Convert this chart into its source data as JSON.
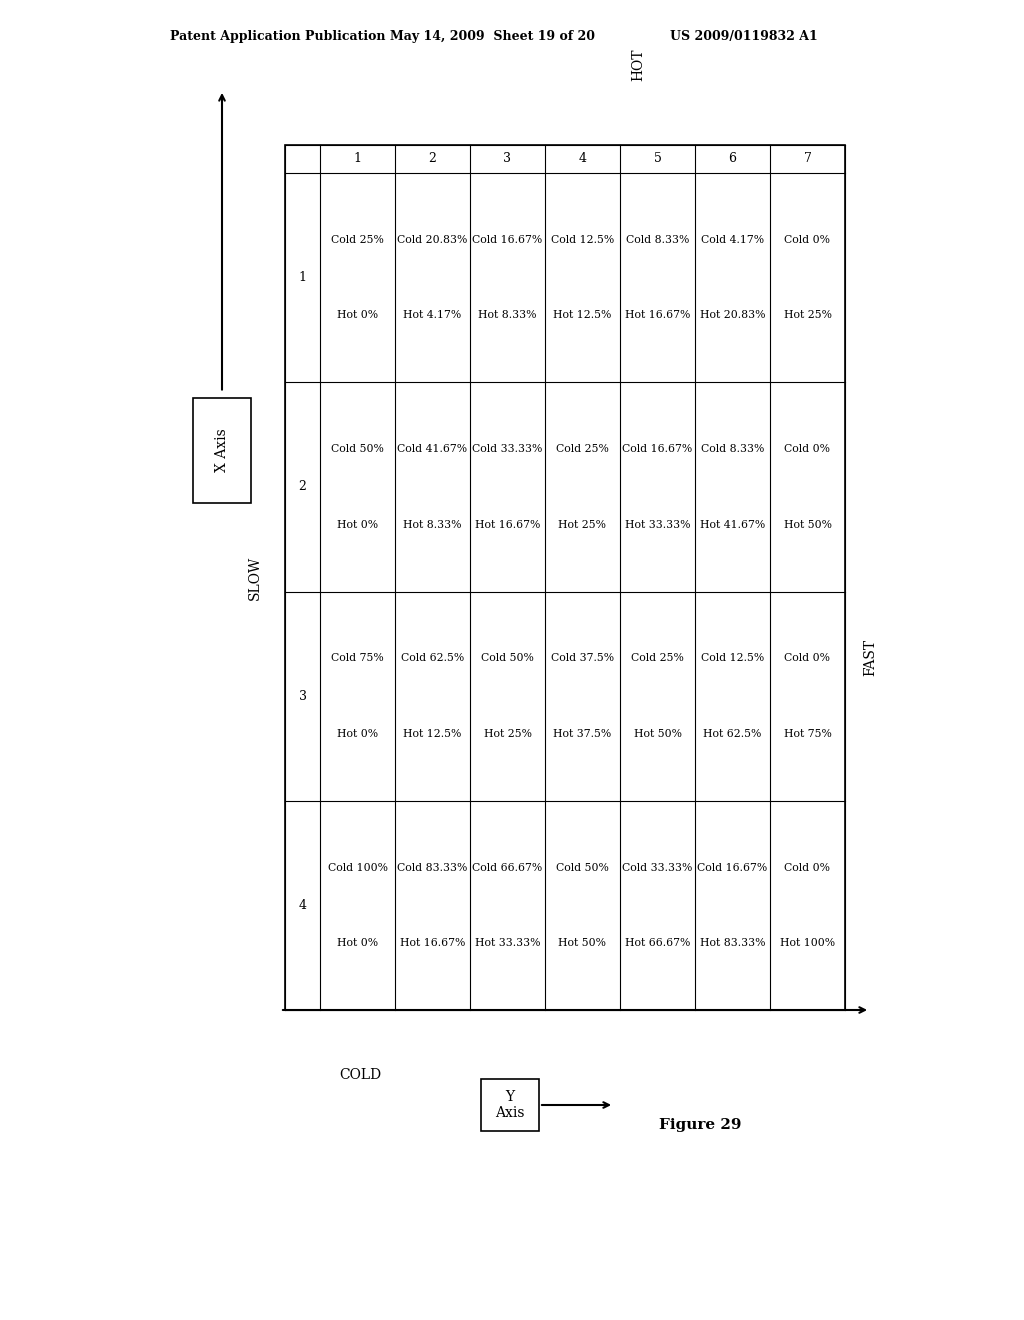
{
  "title_line1": "Patent Application Publication",
  "title_line2": "May 14, 2009  Sheet 19 of 20",
  "title_line3": "US 2009/0119832 A1",
  "figure_label": "Figure 29",
  "x_axis_label": "X Axis",
  "y_axis_label": "Y\nAxis",
  "slow_label": "SLOW",
  "fast_label": "FAST",
  "cold_label": "COLD",
  "hot_label": "HOT",
  "col_headers": [
    "",
    "1",
    "2",
    "3",
    "4",
    "5",
    "6",
    "7"
  ],
  "row_headers": [
    "1",
    "2",
    "3",
    "4"
  ],
  "table_data": [
    [
      [
        "Cold 25%",
        "Hot 0%"
      ],
      [
        "Cold 20.83%",
        "Hot 4.17%"
      ],
      [
        "Cold 16.67%",
        "Hot 8.33%"
      ],
      [
        "Cold 12.5%",
        "Hot 12.5%"
      ],
      [
        "Cold 8.33%",
        "Hot 16.67%"
      ],
      [
        "Cold 4.17%",
        "Hot 20.83%"
      ],
      [
        "Cold 0%",
        "Hot 25%"
      ]
    ],
    [
      [
        "Cold 50%",
        "Hot 0%"
      ],
      [
        "Cold 41.67%",
        "Hot 8.33%"
      ],
      [
        "Cold 33.33%",
        "Hot 16.67%"
      ],
      [
        "Cold 25%",
        "Hot 25%"
      ],
      [
        "Cold 16.67%",
        "Hot 33.33%"
      ],
      [
        "Cold 8.33%",
        "Hot 41.67%"
      ],
      [
        "Cold 0%",
        "Hot 50%"
      ]
    ],
    [
      [
        "Cold 75%",
        "Hot 0%"
      ],
      [
        "Cold 62.5%",
        "Hot 12.5%"
      ],
      [
        "Cold 50%",
        "Hot 25%"
      ],
      [
        "Cold 37.5%",
        "Hot 37.5%"
      ],
      [
        "Cold 25%",
        "Hot 50%"
      ],
      [
        "Cold 12.5%",
        "Hot 62.5%"
      ],
      [
        "Cold 0%",
        "Hot 75%"
      ]
    ],
    [
      [
        "Cold 100%",
        "Hot 0%"
      ],
      [
        "Cold 83.33%",
        "Hot 16.67%"
      ],
      [
        "Cold 66.67%",
        "Hot 33.33%"
      ],
      [
        "Cold 50%",
        "Hot 50%"
      ],
      [
        "Cold 33.33%",
        "Hot 66.67%"
      ],
      [
        "Cold 16.67%",
        "Hot 83.33%"
      ],
      [
        "Cold 0%",
        "Hot 100%"
      ]
    ]
  ],
  "bg_color": "#ffffff",
  "text_color": "#000000",
  "font_size_cell": 7.8,
  "font_size_header_col": 9,
  "font_size_title": 9,
  "font_size_labels": 10,
  "font_size_figure": 11
}
